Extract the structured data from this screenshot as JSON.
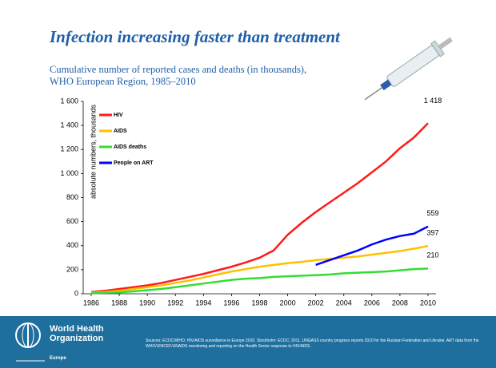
{
  "chart_data": {
    "type": "line",
    "title": "Infection increasing faster than treatment",
    "subtitle": "Cumulative number of reported cases and deaths (in thousands), WHO European Region, 1985–2010",
    "ylabel": "absolute numbers, thousands",
    "x": [
      1986,
      1987,
      1988,
      1989,
      1990,
      1991,
      1992,
      1993,
      1994,
      1995,
      1996,
      1997,
      1998,
      1999,
      2000,
      2001,
      2002,
      2003,
      2004,
      2005,
      2006,
      2007,
      2008,
      2009,
      2010
    ],
    "series": [
      {
        "name": "HIV",
        "color": "#ff1a1a",
        "values": [
          15,
          25,
          40,
          55,
          70,
          90,
          115,
          140,
          165,
          195,
          225,
          260,
          300,
          360,
          490,
          590,
          680,
          760,
          840,
          920,
          1010,
          1100,
          1210,
          1300,
          1418
        ],
        "value_labels": [
          null,
          null,
          null,
          null,
          null,
          null,
          null,
          null,
          null,
          null,
          null,
          null,
          null,
          null,
          null,
          null,
          null,
          null,
          null,
          null,
          null,
          null,
          null,
          null,
          "1 418"
        ]
      },
      {
        "name": "AIDS",
        "color": "#ffc000",
        "values": [
          10,
          15,
          25,
          40,
          55,
          70,
          90,
          110,
          135,
          160,
          185,
          205,
          225,
          240,
          255,
          265,
          280,
          290,
          300,
          310,
          325,
          340,
          355,
          375,
          397
        ],
        "value_labels": [
          null,
          null,
          null,
          null,
          null,
          null,
          null,
          null,
          null,
          null,
          null,
          null,
          null,
          null,
          null,
          null,
          null,
          null,
          null,
          null,
          null,
          null,
          null,
          null,
          "397"
        ]
      },
      {
        "name": "AIDS deaths",
        "color": "#33dd33",
        "values": [
          5,
          8,
          12,
          20,
          30,
          40,
          55,
          70,
          85,
          100,
          115,
          125,
          130,
          140,
          145,
          150,
          155,
          160,
          170,
          175,
          180,
          185,
          195,
          205,
          210
        ],
        "value_labels": [
          null,
          null,
          null,
          null,
          null,
          null,
          null,
          null,
          null,
          null,
          null,
          null,
          null,
          null,
          null,
          null,
          null,
          null,
          null,
          null,
          null,
          null,
          null,
          null,
          "210"
        ]
      },
      {
        "name": "People on ART",
        "color": "#0000ff",
        "values": [
          null,
          null,
          null,
          null,
          null,
          null,
          null,
          null,
          null,
          null,
          null,
          null,
          null,
          null,
          null,
          null,
          240,
          280,
          320,
          360,
          410,
          450,
          480,
          500,
          559
        ],
        "value_labels": [
          null,
          null,
          null,
          null,
          null,
          null,
          null,
          null,
          null,
          null,
          null,
          null,
          null,
          null,
          null,
          null,
          null,
          null,
          null,
          null,
          null,
          null,
          null,
          null,
          "559"
        ]
      }
    ],
    "xlim": [
      1986,
      2010
    ],
    "xticks": [
      1986,
      1988,
      1990,
      1992,
      1994,
      1996,
      1998,
      2000,
      2002,
      2004,
      2006,
      2008,
      2010
    ],
    "ylim": [
      0,
      1600
    ],
    "yticks": [
      0,
      200,
      400,
      600,
      800,
      {
        "value": 1000,
        "label": "1 000"
      },
      {
        "value": 1200,
        "label": "1 200"
      },
      {
        "value": 1400,
        "label": "1 400"
      },
      {
        "value": 1600,
        "label": "1 600"
      }
    ],
    "legend": "top-left"
  },
  "footer": {
    "org": "World Health Organization",
    "region": "Europe",
    "sources": "Sources: ECDC/WHO. HIV/AIDS surveillance in Europe 2010. Stockholm: ECDC; 2011. UNGASS country progress reports 2010 for the Russian Federation and Ukraine. ART data from the WHO/UNICEF/UNAIDS monitoring and reporting on the Health Sector response to HIV/AIDS."
  }
}
